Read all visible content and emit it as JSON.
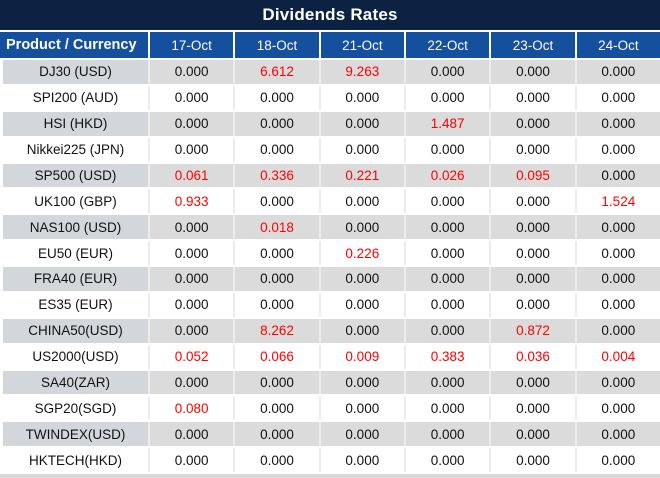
{
  "chart_data": {
    "type": "table",
    "title": "Dividends Rates",
    "label_header": "Product / Currency",
    "date_columns": [
      "17-Oct",
      "18-Oct",
      "21-Oct",
      "22-Oct",
      "23-Oct",
      "24-Oct"
    ],
    "rows": [
      {
        "product": "DJ30 (USD)",
        "values": [
          "0.000",
          "6.612",
          "9.263",
          "0.000",
          "0.000",
          "0.000"
        ],
        "red": [
          false,
          true,
          true,
          false,
          false,
          false
        ]
      },
      {
        "product": "SPI200 (AUD)",
        "values": [
          "0.000",
          "0.000",
          "0.000",
          "0.000",
          "0.000",
          "0.000"
        ],
        "red": [
          false,
          false,
          false,
          false,
          false,
          false
        ]
      },
      {
        "product": "HSI (HKD)",
        "values": [
          "0.000",
          "0.000",
          "0.000",
          "1.487",
          "0.000",
          "0.000"
        ],
        "red": [
          false,
          false,
          false,
          true,
          false,
          false
        ]
      },
      {
        "product": "Nikkei225 (JPN)",
        "values": [
          "0.000",
          "0.000",
          "0.000",
          "0.000",
          "0.000",
          "0.000"
        ],
        "red": [
          false,
          false,
          false,
          false,
          false,
          false
        ]
      },
      {
        "product": "SP500 (USD)",
        "values": [
          "0.061",
          "0.336",
          "0.221",
          "0.026",
          "0.095",
          "0.000"
        ],
        "red": [
          true,
          true,
          true,
          true,
          true,
          false
        ]
      },
      {
        "product": "UK100 (GBP)",
        "values": [
          "0.933",
          "0.000",
          "0.000",
          "0.000",
          "0.000",
          "1.524"
        ],
        "red": [
          true,
          false,
          false,
          false,
          false,
          true
        ]
      },
      {
        "product": "NAS100 (USD)",
        "values": [
          "0.000",
          "0.018",
          "0.000",
          "0.000",
          "0.000",
          "0.000"
        ],
        "red": [
          false,
          true,
          false,
          false,
          false,
          false
        ]
      },
      {
        "product": "EU50 (EUR)",
        "values": [
          "0.000",
          "0.000",
          "0.226",
          "0.000",
          "0.000",
          "0.000"
        ],
        "red": [
          false,
          false,
          true,
          false,
          false,
          false
        ]
      },
      {
        "product": "FRA40 (EUR)",
        "values": [
          "0.000",
          "0.000",
          "0.000",
          "0.000",
          "0.000",
          "0.000"
        ],
        "red": [
          false,
          false,
          false,
          false,
          false,
          false
        ]
      },
      {
        "product": "ES35 (EUR)",
        "values": [
          "0.000",
          "0.000",
          "0.000",
          "0.000",
          "0.000",
          "0.000"
        ],
        "red": [
          false,
          false,
          false,
          false,
          false,
          false
        ]
      },
      {
        "product": "CHINA50(USD)",
        "values": [
          "0.000",
          "8.262",
          "0.000",
          "0.000",
          "0.872",
          "0.000"
        ],
        "red": [
          false,
          true,
          false,
          false,
          true,
          false
        ]
      },
      {
        "product": "US2000(USD)",
        "values": [
          "0.052",
          "0.066",
          "0.009",
          "0.383",
          "0.036",
          "0.004"
        ],
        "red": [
          true,
          true,
          true,
          true,
          true,
          true
        ]
      },
      {
        "product": "SA40(ZAR)",
        "values": [
          "0.000",
          "0.000",
          "0.000",
          "0.000",
          "0.000",
          "0.000"
        ],
        "red": [
          false,
          false,
          false,
          false,
          false,
          false
        ]
      },
      {
        "product": "SGP20(SGD)",
        "values": [
          "0.080",
          "0.000",
          "0.000",
          "0.000",
          "0.000",
          "0.000"
        ],
        "red": [
          true,
          false,
          false,
          false,
          false,
          false
        ]
      },
      {
        "product": "TWINDEX(USD)",
        "values": [
          "0.000",
          "0.000",
          "0.000",
          "0.000",
          "0.000",
          "0.000"
        ],
        "red": [
          false,
          false,
          false,
          false,
          false,
          false
        ]
      },
      {
        "product": "HKTECH(HKD)",
        "values": [
          "0.000",
          "0.000",
          "0.000",
          "0.000",
          "0.000",
          "0.000"
        ],
        "red": [
          false,
          false,
          false,
          false,
          false,
          false
        ]
      }
    ]
  },
  "colors": {
    "title_bg": "#0d2143",
    "header_bg": "#15509f",
    "row_stripe_bg": "#dbdbdb",
    "label_stripe_bg": "#d3d6db",
    "value_red": "#ff0000",
    "value_text": "#111111",
    "grid_line": "#ececec",
    "bottom_strip": "#d9d9d9"
  }
}
